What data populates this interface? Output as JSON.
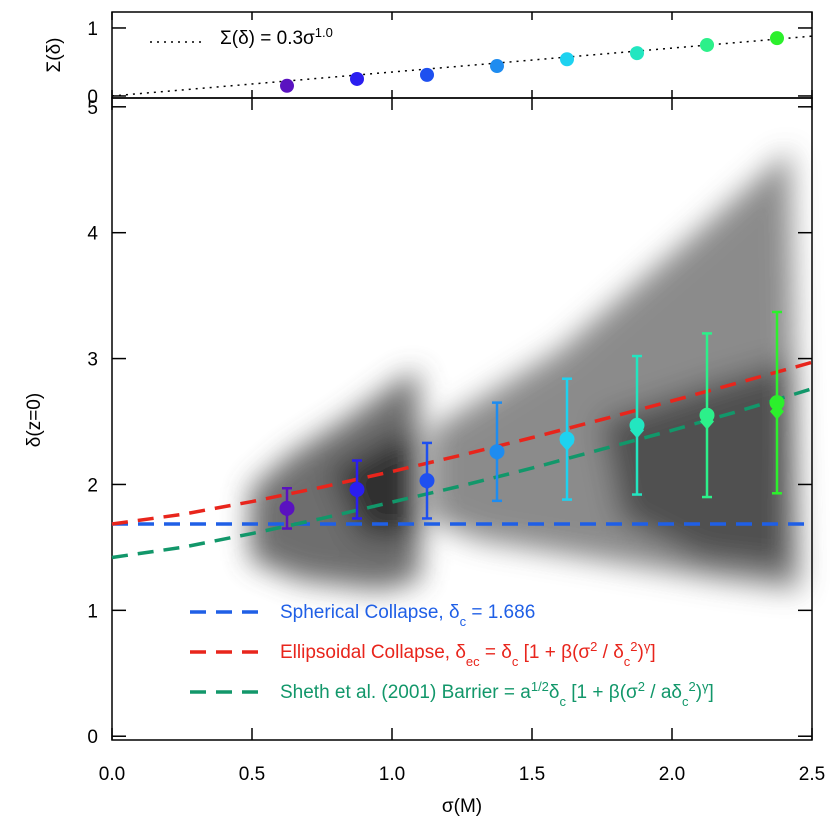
{
  "chart_data": [
    {
      "type": "scatter",
      "panel": "top",
      "ylabel": "Σ(δ)",
      "ylim": [
        -0.03,
        1.235
      ],
      "yticks": [
        0,
        1
      ],
      "xlim": [
        0,
        2.5
      ],
      "fit": {
        "label_parts": [
          {
            "text": "Σ(δ) = 0.3σ"
          },
          {
            "text": "1.0",
            "shift": "super"
          }
        ],
        "x": [
          0,
          2.5
        ],
        "values": [
          0,
          0.88
        ],
        "color": "#000000"
      },
      "x": [
        0.625,
        0.875,
        1.125,
        1.375,
        1.625,
        1.875,
        2.125,
        2.375
      ],
      "values": [
        0.15,
        0.25,
        0.31,
        0.44,
        0.54,
        0.63,
        0.75,
        0.85
      ],
      "colors": [
        "#5a12c0",
        "#2a1ef0",
        "#1e50f0",
        "#1e8cf0",
        "#1ed2f0",
        "#22e6c0",
        "#2cf08a",
        "#2cf02c"
      ]
    },
    {
      "type": "scatter",
      "panel": "main",
      "xlabel": "σ(M)",
      "ylabel": "δ(z=0)",
      "xlim": [
        0,
        2.5
      ],
      "xticks": [
        {
          "value": 0,
          "label": "0.0"
        },
        0.5,
        {
          "value": 1,
          "label": "1.0"
        },
        1.5,
        {
          "value": 2,
          "label": "2.0"
        },
        2.5
      ],
      "ylim": [
        -0.03,
        5.07
      ],
      "yticks": [
        0,
        1,
        2,
        3,
        4,
        5
      ],
      "x": [
        0.625,
        0.875,
        1.125,
        1.375,
        1.625,
        1.875,
        2.125,
        2.375
      ],
      "values": [
        1.81,
        1.96,
        2.03,
        2.26,
        2.36,
        2.47,
        2.55,
        2.65
      ],
      "errors": [
        0.16,
        0.23,
        0.3,
        0.39,
        0.48,
        0.55,
        0.65,
        0.72
      ],
      "medians": [
        1.8,
        1.95,
        2.02,
        2.25,
        2.33,
        2.43,
        2.5,
        2.58
      ],
      "colors": [
        "#5a12c0",
        "#2a1ef0",
        "#1e50f0",
        "#1e8cf0",
        "#1ed2f0",
        "#22e6c0",
        "#2cf08a",
        "#2cf02c"
      ],
      "lines": [
        {
          "label_parts": [
            {
              "text": "Spherical Collapse, δ"
            },
            {
              "text": "c",
              "shift": "sub"
            },
            {
              "text": " = 1.686"
            }
          ],
          "color": "#1f5fe6",
          "x": [
            0,
            2.5
          ],
          "values": [
            1.686,
            1.686
          ]
        },
        {
          "label_parts": [
            {
              "text": "Ellipsoidal Collapse, δ"
            },
            {
              "text": "ec",
              "shift": "sub"
            },
            {
              "text": " = δ"
            },
            {
              "text": "c",
              "shift": "sub"
            },
            {
              "text": " [1 + β(σ"
            },
            {
              "text": "2",
              "shift": "super"
            },
            {
              "text": " / δ"
            },
            {
              "text": "c",
              "shift": "sub"
            },
            {
              "text": "2",
              "shift": "super"
            },
            {
              "text": ")"
            },
            {
              "text": "γ",
              "shift": "super"
            },
            {
              "text": "]"
            }
          ],
          "color": "#e8251c",
          "x": [
            0,
            0.25,
            0.5,
            0.75,
            1,
            1.25,
            1.5,
            1.75,
            2,
            2.25,
            2.5
          ],
          "values": [
            1.686,
            1.762,
            1.864,
            1.979,
            2.103,
            2.234,
            2.372,
            2.516,
            2.664,
            2.816,
            2.97
          ]
        },
        {
          "label_parts": [
            {
              "text": "Sheth et al. (2001) Barrier = a"
            },
            {
              "text": "1/2",
              "shift": "super"
            },
            {
              "text": "δ"
            },
            {
              "text": "c",
              "shift": "sub"
            },
            {
              "text": " [1 + β(σ"
            },
            {
              "text": "2",
              "shift": "super"
            },
            {
              "text": " / aδ"
            },
            {
              "text": "c",
              "shift": "sub"
            },
            {
              "text": "2",
              "shift": "super"
            },
            {
              "text": ")"
            },
            {
              "text": "γ",
              "shift": "super"
            },
            {
              "text": "]"
            }
          ],
          "color": "#12976a",
          "x": [
            0,
            0.25,
            0.5,
            0.75,
            1,
            1.25,
            1.5,
            1.75,
            2,
            2.25,
            2.5
          ],
          "values": [
            1.42,
            1.5,
            1.61,
            1.73,
            1.86,
            1.99,
            2.13,
            2.28,
            2.43,
            2.59,
            2.76
          ]
        }
      ]
    }
  ]
}
